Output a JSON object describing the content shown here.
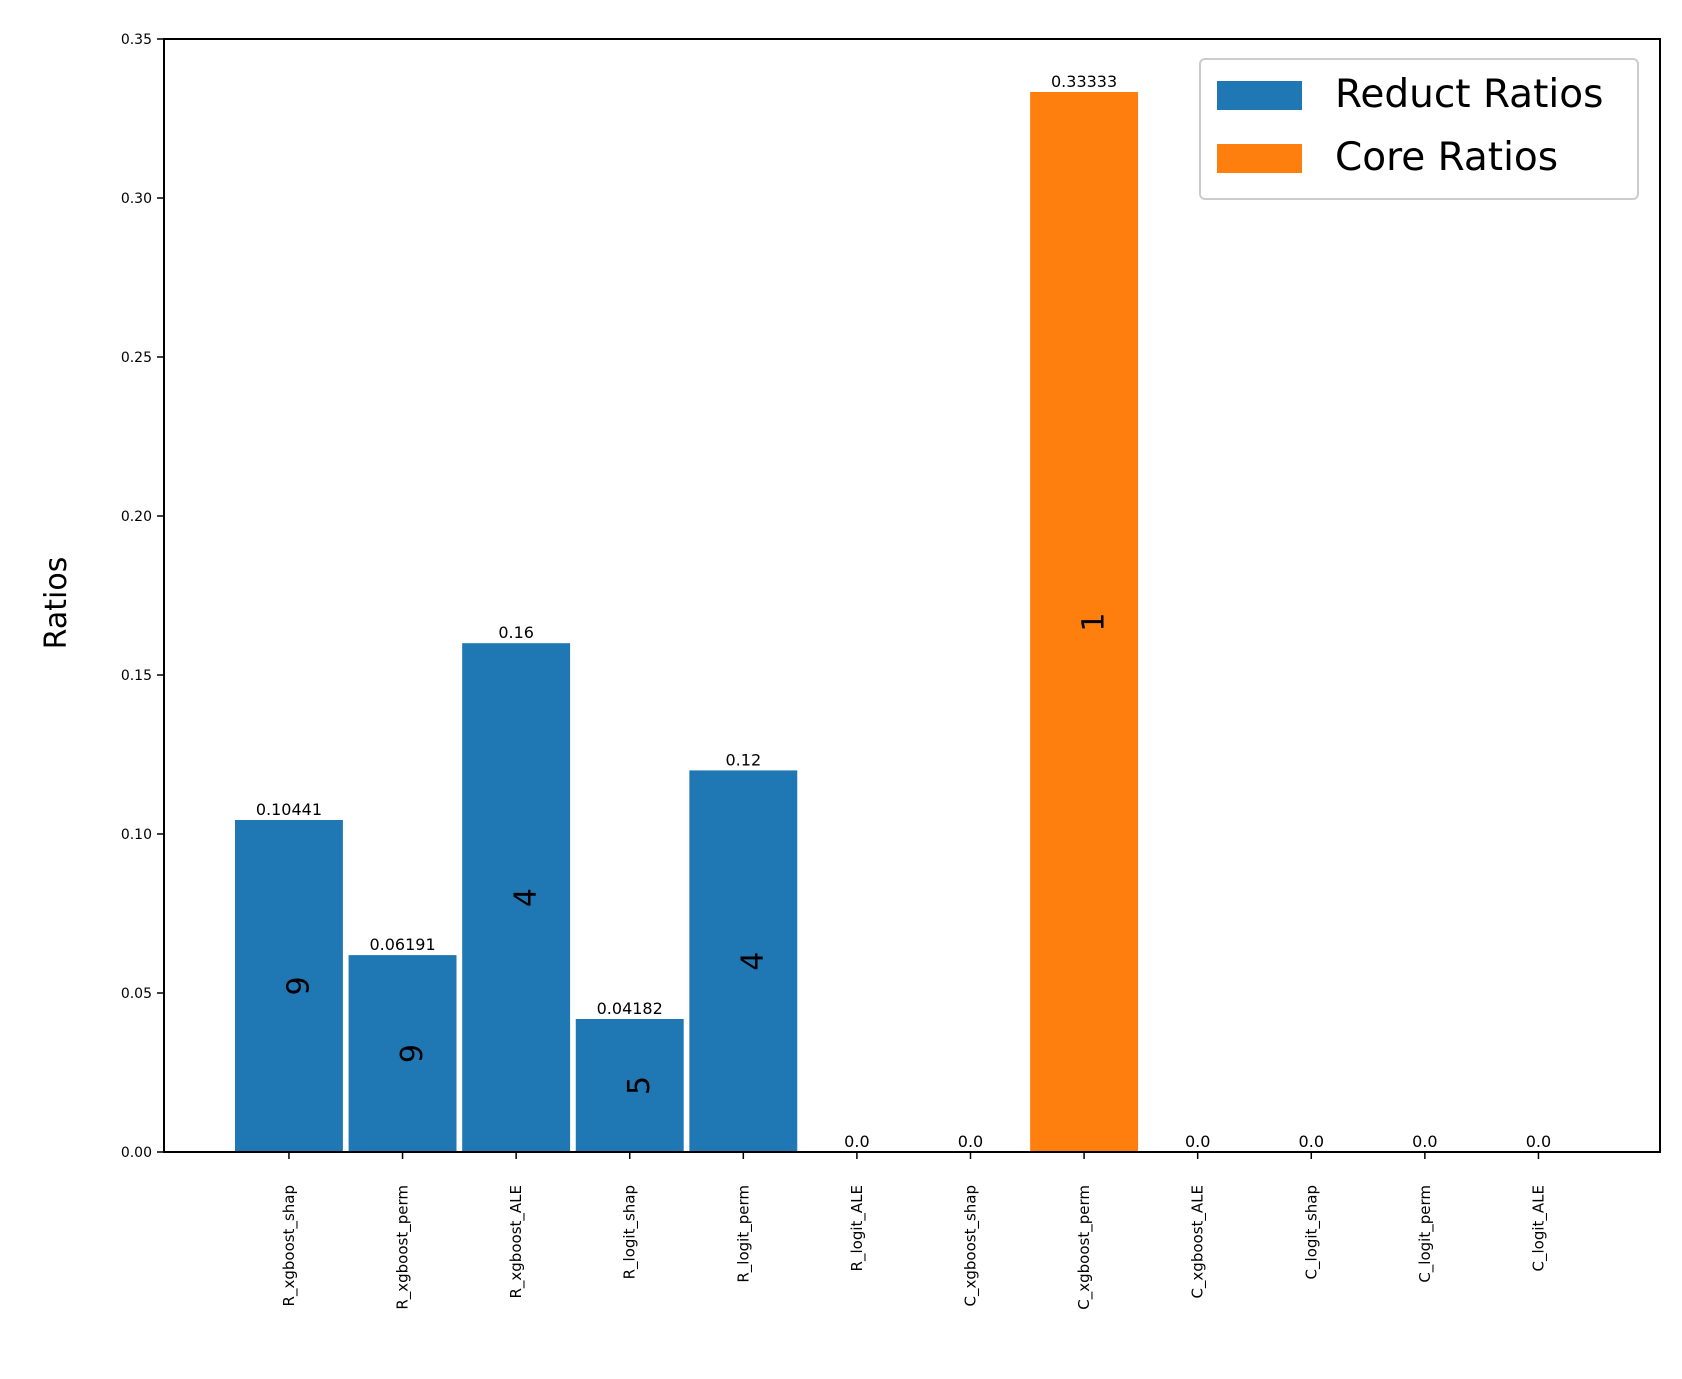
{
  "chart_data": {
    "type": "bar",
    "ylabel": "Ratios",
    "categories": [
      "R_xgboost_shap",
      "R_xgboost_perm",
      "R_xgboost_ALE",
      "R_logit_shap",
      "R_logit_perm",
      "R_logit_ALE",
      "C_xgboost_shap",
      "C_xgboost_perm",
      "C_xgboost_ALE",
      "C_logit_shap",
      "C_logit_perm",
      "C_logit_ALE"
    ],
    "series": [
      {
        "name": "Reduct Ratios",
        "color": "#1f77b4",
        "values": [
          0.10441,
          0.06191,
          0.16,
          0.04182,
          0.12,
          0.0,
          null,
          null,
          null,
          null,
          null,
          null
        ],
        "value_labels": [
          "0.10441",
          "0.06191",
          "0.16",
          "0.04182",
          "0.12",
          "0.0",
          null,
          null,
          null,
          null,
          null,
          null
        ],
        "annotations": [
          9,
          9,
          4,
          5,
          4,
          null,
          null,
          null,
          null,
          null,
          null,
          null
        ]
      },
      {
        "name": "Core Ratios",
        "color": "#ff7f0e",
        "values": [
          null,
          null,
          null,
          null,
          null,
          null,
          0.0,
          0.33333,
          0.0,
          0.0,
          0.0,
          0.0
        ],
        "value_labels": [
          null,
          null,
          null,
          null,
          null,
          null,
          "0.0",
          "0.33333",
          "0.0",
          "0.0",
          "0.0",
          "0.0"
        ],
        "annotations": [
          null,
          null,
          null,
          null,
          null,
          null,
          null,
          1,
          null,
          null,
          null,
          null
        ]
      }
    ],
    "ylim": [
      0,
      0.35
    ],
    "yticks": [
      {
        "value": 0,
        "label": "0.00"
      },
      {
        "value": 0.05,
        "label": "0.05"
      },
      {
        "value": 0.1,
        "label": "0.10"
      },
      {
        "value": 0.15,
        "label": "0.15"
      },
      {
        "value": 0.2,
        "label": "0.20"
      },
      {
        "value": 0.25,
        "label": "0.25"
      },
      {
        "value": 0.3,
        "label": "0.30"
      },
      {
        "value": 0.35,
        "label": "0.35"
      }
    ],
    "legend": "upper right",
    "grid": false
  }
}
